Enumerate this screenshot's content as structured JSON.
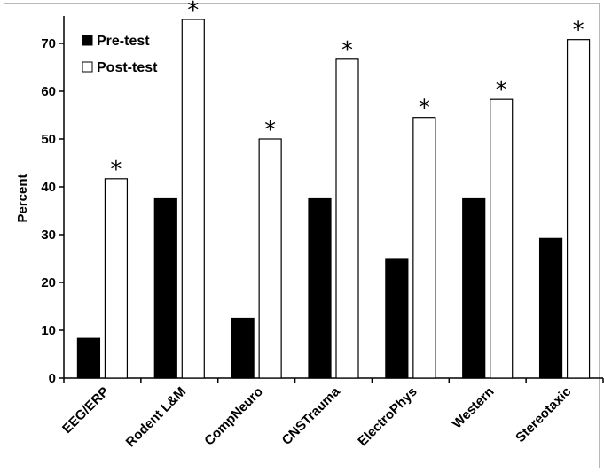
{
  "chart_data": {
    "type": "bar",
    "categories": [
      "EEG/ERP",
      "Rodent L&M",
      "CompNeuro",
      "CNSTrauma",
      "ElectroPhys",
      "Western",
      "Stereotaxic"
    ],
    "series": [
      {
        "name": "Pre-test",
        "values": [
          8.3,
          37.5,
          12.5,
          37.5,
          25.0,
          37.5,
          29.2
        ],
        "color": "#000000"
      },
      {
        "name": "Post-test",
        "values": [
          41.7,
          75.0,
          50.0,
          66.7,
          54.5,
          58.3,
          70.8
        ],
        "color": "#ffffff"
      }
    ],
    "annotations": [
      "*",
      "*",
      "*",
      "*",
      "*",
      "*",
      "*"
    ],
    "ylabel": "Percent",
    "xlabel": "",
    "yticks": [
      0,
      10,
      20,
      30,
      40,
      50,
      60,
      70
    ],
    "ylim": [
      0,
      75
    ],
    "grid": false,
    "legend_position": "top-left"
  }
}
